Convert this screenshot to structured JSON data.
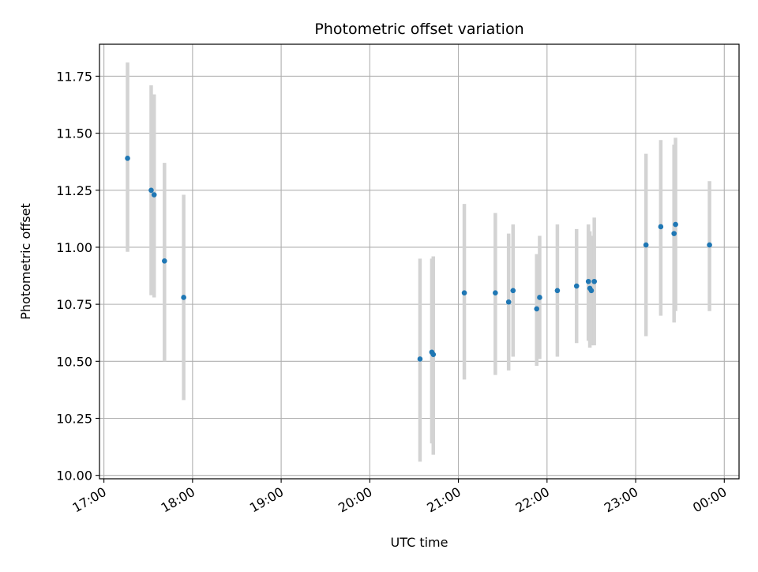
{
  "chart_data": {
    "type": "scatter",
    "title": "Photometric offset variation",
    "xlabel": "UTC time",
    "ylabel": "Photometric offset",
    "xlim": [
      "16:57",
      "00:10"
    ],
    "ylim": [
      9.985,
      11.89
    ],
    "xticks": [
      "17:00",
      "18:00",
      "19:00",
      "20:00",
      "21:00",
      "22:00",
      "23:00",
      "00:00"
    ],
    "yticks": [
      "10.00",
      "10.25",
      "10.50",
      "10.75",
      "11.00",
      "11.25",
      "11.50",
      "11.75"
    ],
    "ytick_values": [
      10.0,
      10.25,
      10.5,
      10.75,
      11.0,
      11.25,
      11.5,
      11.75
    ],
    "grid": true,
    "colors": {
      "points": "#1f77b4",
      "errorbars": "#d3d3d3",
      "grid": "#b0b0b0"
    },
    "points": [
      {
        "time": "17:16",
        "y": 11.39,
        "ylo": 10.98,
        "yhi": 11.81
      },
      {
        "time": "17:32",
        "y": 11.25,
        "ylo": 10.79,
        "yhi": 11.71
      },
      {
        "time": "17:34",
        "y": 11.23,
        "ylo": 10.78,
        "yhi": 11.67
      },
      {
        "time": "17:41",
        "y": 10.94,
        "ylo": 10.5,
        "yhi": 11.37
      },
      {
        "time": "17:54",
        "y": 10.78,
        "ylo": 10.33,
        "yhi": 11.23
      },
      {
        "time": "20:34",
        "y": 10.51,
        "ylo": 10.06,
        "yhi": 10.95
      },
      {
        "time": "20:42",
        "y": 10.54,
        "ylo": 10.14,
        "yhi": 10.95
      },
      {
        "time": "20:43",
        "y": 10.53,
        "ylo": 10.09,
        "yhi": 10.96
      },
      {
        "time": "21:04",
        "y": 10.8,
        "ylo": 10.42,
        "yhi": 11.19
      },
      {
        "time": "21:25",
        "y": 10.8,
        "ylo": 10.44,
        "yhi": 11.15
      },
      {
        "time": "21:34",
        "y": 10.76,
        "ylo": 10.46,
        "yhi": 11.06
      },
      {
        "time": "21:37",
        "y": 10.81,
        "ylo": 10.52,
        "yhi": 11.1
      },
      {
        "time": "21:53",
        "y": 10.73,
        "ylo": 10.48,
        "yhi": 10.97
      },
      {
        "time": "21:55",
        "y": 10.78,
        "ylo": 10.51,
        "yhi": 11.05
      },
      {
        "time": "22:07",
        "y": 10.81,
        "ylo": 10.52,
        "yhi": 11.1
      },
      {
        "time": "22:20",
        "y": 10.83,
        "ylo": 10.58,
        "yhi": 11.08
      },
      {
        "time": "22:28",
        "y": 10.85,
        "ylo": 10.59,
        "yhi": 11.1
      },
      {
        "time": "22:29",
        "y": 10.82,
        "ylo": 10.56,
        "yhi": 11.07
      },
      {
        "time": "22:30",
        "y": 10.81,
        "ylo": 10.57,
        "yhi": 11.05
      },
      {
        "time": "22:32",
        "y": 10.85,
        "ylo": 10.57,
        "yhi": 11.13
      },
      {
        "time": "23:07",
        "y": 11.01,
        "ylo": 10.61,
        "yhi": 11.41
      },
      {
        "time": "23:17",
        "y": 11.09,
        "ylo": 10.7,
        "yhi": 11.47
      },
      {
        "time": "23:26",
        "y": 11.06,
        "ylo": 10.67,
        "yhi": 11.45
      },
      {
        "time": "23:27",
        "y": 11.1,
        "ylo": 10.72,
        "yhi": 11.48
      },
      {
        "time": "23:50",
        "y": 11.01,
        "ylo": 10.72,
        "yhi": 11.29
      }
    ]
  }
}
